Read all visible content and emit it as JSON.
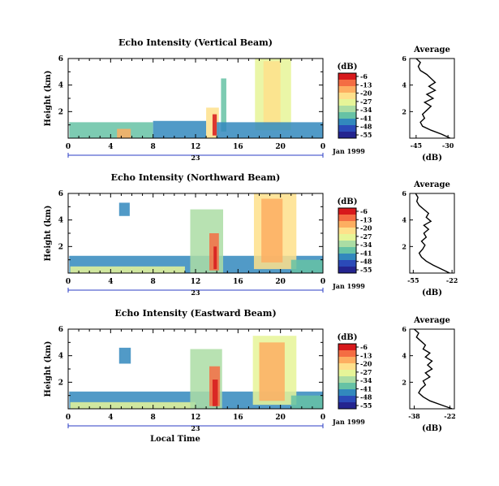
{
  "chart_data": [
    {
      "type": "heatmap",
      "title": "Echo Intensity (Vertical Beam)",
      "ylabel": "Height (km)",
      "x_ticks": [
        "0",
        "4",
        "8",
        "12",
        "16",
        "20",
        "0"
      ],
      "y_ticks": [
        "2",
        "4",
        "6"
      ],
      "xlim": [
        0,
        24
      ],
      "ylim": [
        0,
        6
      ],
      "day_label": "23",
      "date_label": "Jan 1999",
      "colorbar": {
        "title": "(dB)",
        "labels": [
          "-6",
          "-13",
          "-20",
          "-27",
          "-34",
          "-41",
          "-48",
          "-55"
        ],
        "colors": [
          "#d7191c",
          "#f46d43",
          "#fdae61",
          "#fee08b",
          "#e6f598",
          "#abdda4",
          "#66c2a5",
          "#3288bd",
          "#2b4ab8",
          "#24248f"
        ]
      },
      "echo_regions": [
        {
          "t0": 0.1,
          "t1": 8.0,
          "h0": 0.0,
          "h1": 1.2,
          "db": -40
        },
        {
          "t0": 8.0,
          "t1": 13.0,
          "h0": 0.0,
          "h1": 1.3,
          "db": -45
        },
        {
          "t0": 4.6,
          "t1": 5.9,
          "h0": 0.0,
          "h1": 0.7,
          "db": -15
        },
        {
          "t0": 13.0,
          "t1": 14.2,
          "h0": 0.0,
          "h1": 2.3,
          "db": -20
        },
        {
          "t0": 13.6,
          "t1": 14.0,
          "h0": 0.2,
          "h1": 1.8,
          "db": -8
        },
        {
          "t0": 14.4,
          "t1": 14.9,
          "h0": 0.5,
          "h1": 4.5,
          "db": -37
        },
        {
          "t0": 17.6,
          "t1": 21.0,
          "h0": 0.6,
          "h1": 6.0,
          "db": -30
        },
        {
          "t0": 18.4,
          "t1": 20.0,
          "h0": 1.0,
          "h1": 5.8,
          "db": -22
        },
        {
          "t0": 14.0,
          "t1": 24.0,
          "h0": 0.0,
          "h1": 1.2,
          "db": -44
        }
      ],
      "profile": {
        "title": "Average",
        "xlabel": "(dB)",
        "x_ticks": [
          "-45",
          "-30"
        ],
        "xlim": [
          -48,
          -27
        ],
        "y_ticks": [
          "2",
          "4",
          "6"
        ],
        "heights": [
          0.0,
          0.3,
          0.6,
          0.9,
          1.2,
          1.5,
          1.8,
          2.1,
          2.4,
          2.7,
          3.0,
          3.3,
          3.6,
          3.9,
          4.2,
          4.5,
          4.8,
          5.1,
          5.4,
          5.7,
          6.0
        ],
        "db": [
          -29,
          -33,
          -38,
          -42,
          -43,
          -41,
          -42,
          -40,
          -38,
          -41,
          -37,
          -40,
          -36,
          -39,
          -36,
          -38,
          -40,
          -43,
          -44,
          -43,
          -45
        ]
      }
    },
    {
      "type": "heatmap",
      "title": "Echo Intensity (Northward Beam)",
      "ylabel": "Height (km)",
      "x_ticks": [
        "0",
        "4",
        "8",
        "12",
        "16",
        "20",
        "0"
      ],
      "y_ticks": [
        "2",
        "4",
        "6"
      ],
      "xlim": [
        0,
        24
      ],
      "ylim": [
        0,
        6
      ],
      "day_label": "23",
      "date_label": "Jan 1999",
      "colorbar": {
        "title": "(dB)",
        "labels": [
          "-6",
          "-13",
          "-20",
          "-27",
          "-34",
          "-41",
          "-48",
          "-55"
        ],
        "colors": [
          "#d7191c",
          "#f46d43",
          "#fdae61",
          "#fee08b",
          "#e6f598",
          "#abdda4",
          "#66c2a5",
          "#3288bd",
          "#2b4ab8",
          "#24248f"
        ]
      },
      "echo_regions": [
        {
          "t0": 0.1,
          "t1": 24.0,
          "h0": 0.0,
          "h1": 1.3,
          "db": -44
        },
        {
          "t0": 0.2,
          "t1": 11.0,
          "h0": 0.0,
          "h1": 0.5,
          "db": -30
        },
        {
          "t0": 4.8,
          "t1": 5.8,
          "h0": 4.3,
          "h1": 5.3,
          "db": -45
        },
        {
          "t0": 11.5,
          "t1": 14.6,
          "h0": 0.0,
          "h1": 4.8,
          "db": -35
        },
        {
          "t0": 13.3,
          "t1": 14.2,
          "h0": 0.2,
          "h1": 3.0,
          "db": -14
        },
        {
          "t0": 13.7,
          "t1": 14.0,
          "h0": 0.3,
          "h1": 2.0,
          "db": -8
        },
        {
          "t0": 17.5,
          "t1": 21.5,
          "h0": 0.3,
          "h1": 6.0,
          "db": -24
        },
        {
          "t0": 18.2,
          "t1": 20.2,
          "h0": 0.8,
          "h1": 5.6,
          "db": -15
        },
        {
          "t0": 21.0,
          "t1": 24.0,
          "h0": 0.0,
          "h1": 1.0,
          "db": -38
        }
      ],
      "profile": {
        "title": "Average",
        "xlabel": "(dB)",
        "x_ticks": [
          "-55",
          "-22"
        ],
        "xlim": [
          -58,
          -20
        ],
        "y_ticks": [
          "2",
          "4",
          "6"
        ],
        "heights": [
          0.0,
          0.3,
          0.6,
          0.9,
          1.2,
          1.5,
          1.8,
          2.1,
          2.4,
          2.7,
          3.0,
          3.3,
          3.6,
          3.9,
          4.2,
          4.5,
          4.8,
          5.1,
          5.4,
          5.7,
          6.0
        ],
        "db": [
          -24,
          -31,
          -38,
          -44,
          -48,
          -50,
          -47,
          -45,
          -48,
          -44,
          -46,
          -42,
          -46,
          -40,
          -44,
          -42,
          -46,
          -50,
          -52,
          -51,
          -53
        ]
      }
    },
    {
      "type": "heatmap",
      "title": "Echo Intensity (Eastward Beam)",
      "ylabel": "Height (km)",
      "x_ticks": [
        "0",
        "4",
        "8",
        "12",
        "16",
        "20",
        "0"
      ],
      "y_ticks": [
        "2",
        "4",
        "6"
      ],
      "xlim": [
        0,
        24
      ],
      "ylim": [
        0,
        6
      ],
      "day_label": "23",
      "date_label": "Jan 1999",
      "xlabel": "Local Time",
      "colorbar": {
        "title": "(dB)",
        "labels": [
          "-6",
          "-13",
          "-20",
          "-27",
          "-34",
          "-41",
          "-48",
          "-55"
        ],
        "colors": [
          "#d7191c",
          "#f46d43",
          "#fdae61",
          "#fee08b",
          "#e6f598",
          "#abdda4",
          "#66c2a5",
          "#3288bd",
          "#2b4ab8",
          "#24248f"
        ]
      },
      "echo_regions": [
        {
          "t0": 0.1,
          "t1": 24.0,
          "h0": 0.0,
          "h1": 1.3,
          "db": -42
        },
        {
          "t0": 0.2,
          "t1": 12.0,
          "h0": 0.0,
          "h1": 0.5,
          "db": -28
        },
        {
          "t0": 4.8,
          "t1": 5.9,
          "h0": 3.4,
          "h1": 4.6,
          "db": -45
        },
        {
          "t0": 11.5,
          "t1": 14.5,
          "h0": 0.0,
          "h1": 4.5,
          "db": -33
        },
        {
          "t0": 13.3,
          "t1": 14.3,
          "h0": 0.2,
          "h1": 3.2,
          "db": -12
        },
        {
          "t0": 13.6,
          "t1": 14.1,
          "h0": 0.2,
          "h1": 2.2,
          "db": -6
        },
        {
          "t0": 17.4,
          "t1": 21.5,
          "h0": 0.3,
          "h1": 5.5,
          "db": -26
        },
        {
          "t0": 18.0,
          "t1": 20.4,
          "h0": 0.6,
          "h1": 5.0,
          "db": -16
        },
        {
          "t0": 21.0,
          "t1": 24.0,
          "h0": 0.0,
          "h1": 1.0,
          "db": -36
        }
      ],
      "profile": {
        "title": "Average",
        "xlabel": "(dB)",
        "x_ticks": [
          "-38",
          "-22"
        ],
        "xlim": [
          -40,
          -20
        ],
        "y_ticks": [
          "2",
          "4",
          "6"
        ],
        "heights": [
          0.0,
          0.3,
          0.6,
          0.9,
          1.2,
          1.5,
          1.8,
          2.1,
          2.4,
          2.7,
          3.0,
          3.3,
          3.6,
          3.9,
          4.2,
          4.5,
          4.8,
          5.1,
          5.4,
          5.7,
          6.0
        ],
        "db": [
          -21,
          -26,
          -31,
          -34,
          -36,
          -35,
          -33,
          -34,
          -31,
          -33,
          -30,
          -32,
          -30,
          -33,
          -31,
          -34,
          -33,
          -35,
          -37,
          -36,
          -38
        ]
      }
    }
  ]
}
